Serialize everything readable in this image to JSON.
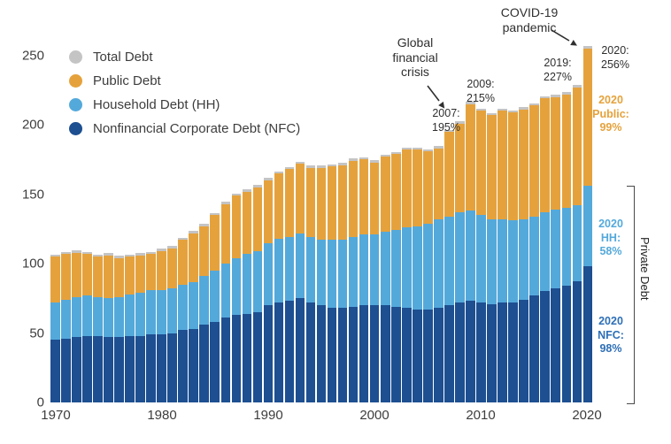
{
  "legend": {
    "items": [
      {
        "label": "Total Debt",
        "color": "#c4c4c4"
      },
      {
        "label": "Public Debt",
        "color": "#e5a23c"
      },
      {
        "label": "Household Debt (HH)",
        "color": "#54a9db"
      },
      {
        "label": "Nonfinancial Corporate Debt (NFC)",
        "color": "#1d4f91"
      }
    ]
  },
  "annotations": {
    "gfc": "Global\nfinancial\ncrisis",
    "covid": "COVID-19\npandemic",
    "y2007": "2007:\n195%",
    "y2009": "2009:\n215%",
    "y2019": "2019:\n227%",
    "y2020": "2020:\n256%",
    "public2020": "2020\nPublic:\n99%",
    "hh2020": "2020\nHH:\n58%",
    "nfc2020": "2020\nNFC:\n98%",
    "private_debt": "Private Debt",
    "colors": {
      "public": "#e5a23c",
      "hh": "#54a9db",
      "nfc": "#2e6fb7",
      "dark": "#2f2f2f"
    }
  },
  "chart_data": {
    "type": "bar",
    "stacked": true,
    "x": [
      1970,
      1971,
      1972,
      1973,
      1974,
      1975,
      1976,
      1977,
      1978,
      1979,
      1980,
      1981,
      1982,
      1983,
      1984,
      1985,
      1986,
      1987,
      1988,
      1989,
      1990,
      1991,
      1992,
      1993,
      1994,
      1995,
      1996,
      1997,
      1998,
      1999,
      2000,
      2001,
      2002,
      2003,
      2004,
      2005,
      2006,
      2007,
      2008,
      2009,
      2010,
      2011,
      2012,
      2013,
      2014,
      2015,
      2016,
      2017,
      2018,
      2019,
      2020
    ],
    "series": [
      {
        "key": "nfc",
        "name": "Nonfinancial Corporate Debt (NFC)",
        "color": "#1d4f91",
        "values": [
          45,
          46,
          47,
          48,
          48,
          47,
          47,
          48,
          48,
          49,
          49,
          50,
          52,
          53,
          56,
          58,
          61,
          63,
          64,
          65,
          70,
          72,
          73,
          75,
          72,
          70,
          68,
          68,
          69,
          70,
          70,
          70,
          69,
          68,
          67,
          67,
          68,
          70,
          72,
          73,
          72,
          71,
          72,
          72,
          74,
          77,
          80,
          82,
          84,
          87,
          98
        ]
      },
      {
        "key": "hh",
        "name": "Household Debt (HH)",
        "color": "#54a9db",
        "values": [
          27,
          28,
          29,
          29,
          28,
          28,
          29,
          30,
          31,
          32,
          32,
          32,
          33,
          34,
          35,
          37,
          39,
          41,
          43,
          44,
          45,
          46,
          46,
          47,
          47,
          47,
          49,
          49,
          50,
          51,
          51,
          53,
          55,
          58,
          60,
          62,
          64,
          64,
          65,
          65,
          63,
          61,
          60,
          59,
          58,
          57,
          57,
          57,
          56,
          55,
          58
        ]
      },
      {
        "key": "public",
        "name": "Public Debt",
        "color": "#e5a23c",
        "values": [
          33,
          33,
          32,
          30,
          29,
          31,
          28,
          27,
          27,
          26,
          28,
          29,
          32,
          35,
          36,
          40,
          43,
          45,
          45,
          46,
          45,
          47,
          49,
          50,
          50,
          52,
          53,
          54,
          55,
          54,
          52,
          54,
          55,
          56,
          55,
          52,
          51,
          61,
          64,
          77,
          75,
          75,
          78,
          78,
          79,
          80,
          82,
          81,
          82,
          85,
          99
        ]
      }
    ],
    "total_color": "#c4c4c4",
    "ylim": [
      0,
      260
    ],
    "yticks": [
      0,
      50,
      100,
      150,
      200,
      250
    ],
    "xticks": [
      1970,
      1980,
      1990,
      2000,
      2010,
      2020
    ],
    "highlight_totals": {
      "2007": "195%",
      "2009": "215%",
      "2019": "227%",
      "2020": "256%"
    },
    "breakdown_2020": {
      "public": "99%",
      "hh": "58%",
      "nfc": "98%"
    },
    "legend_position": "top-left",
    "grid": false
  }
}
